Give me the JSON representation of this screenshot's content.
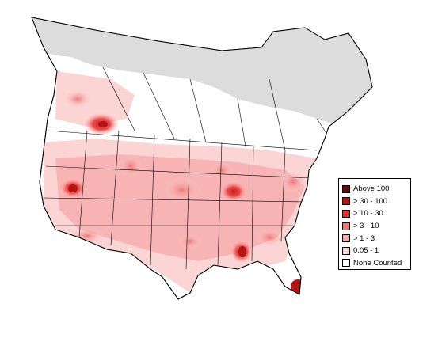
{
  "legend": {
    "items": [
      {
        "label": "Above 100",
        "color": "#5c0a0a"
      },
      {
        "label": "> 30 - 100",
        "color": "#b31414"
      },
      {
        "label": "> 10 - 30",
        "color": "#e83232"
      },
      {
        "label": "> 3 - 10",
        "color": "#f07878"
      },
      {
        "label": "> 1 - 3",
        "color": "#f7aaaa"
      },
      {
        "label": "0.05 - 1",
        "color": "#fbd4d4"
      },
      {
        "label": "None Counted",
        "color": "#ffffff"
      }
    ]
  },
  "map": {
    "land_color": "#ffffff",
    "outside_range_color": "#dcdcdc",
    "border_color": "#000000"
  }
}
